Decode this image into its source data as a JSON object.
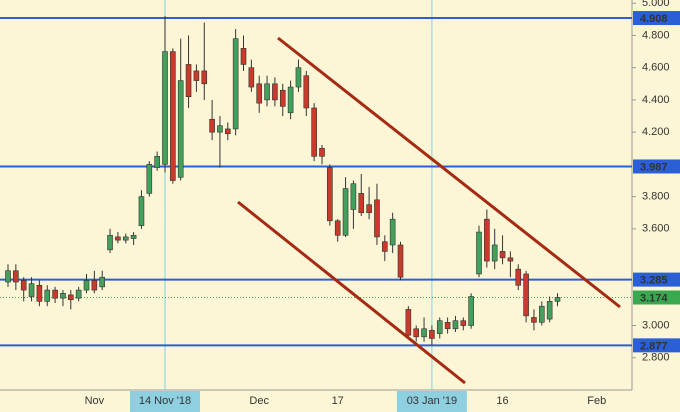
{
  "chart_data": {
    "type": "candlestick",
    "categories": [
      null,
      null,
      null,
      null,
      null,
      null,
      null,
      null,
      null,
      null,
      null,
      "Nov",
      null,
      null,
      null,
      null,
      null,
      null,
      null,
      null,
      "14 Nov '18",
      null,
      null,
      null,
      null,
      null,
      null,
      null,
      null,
      null,
      null,
      null,
      "Dec",
      null,
      null,
      null,
      null,
      null,
      null,
      null,
      null,
      null,
      "17",
      null,
      null,
      null,
      null,
      null,
      null,
      null,
      null,
      null,
      null,
      null,
      "03 Jan '19",
      null,
      null,
      null,
      null,
      null,
      null,
      null,
      null,
      "16",
      null,
      null,
      null,
      null,
      null,
      null,
      null,
      null,
      null,
      null,
      null,
      "Feb"
    ],
    "open": [
      3.27,
      3.34,
      3.28,
      3.18,
      3.25,
      3.15,
      3.22,
      3.17,
      3.19,
      3.17,
      3.22,
      3.28,
      3.24,
      3.47,
      3.55,
      3.53,
      3.54,
      3.62,
      3.82,
      3.98,
      4.0,
      4.7,
      3.92,
      4.62,
      4.58,
      4.58,
      4.28,
      4.2,
      4.22,
      4.22,
      4.72,
      4.6,
      4.5,
      4.4,
      4.5,
      4.46,
      4.32,
      4.48,
      4.55,
      4.35,
      4.1,
      3.98,
      3.65,
      3.56,
      3.72,
      3.82,
      3.75,
      3.78,
      3.52,
      3.5,
      3.5,
      3.1,
      2.98,
      2.93,
      2.97,
      2.95,
      3.02,
      2.98,
      3.03,
      3.0,
      3.32,
      3.66,
      3.4,
      3.46,
      3.42,
      3.35,
      3.32,
      3.05,
      3.02,
      3.04,
      3.15,
      null,
      null,
      null,
      null,
      null
    ],
    "high": [
      3.38,
      3.38,
      3.3,
      3.3,
      3.28,
      3.25,
      3.24,
      3.22,
      3.22,
      3.24,
      3.32,
      3.34,
      3.34,
      3.6,
      3.58,
      3.57,
      3.58,
      3.84,
      4.02,
      4.08,
      4.92,
      4.72,
      4.78,
      4.8,
      4.62,
      4.88,
      4.4,
      4.3,
      4.26,
      4.84,
      4.8,
      4.65,
      4.55,
      4.55,
      4.54,
      4.5,
      4.52,
      4.65,
      4.58,
      4.38,
      4.12,
      4.0,
      3.66,
      3.92,
      3.9,
      3.94,
      3.86,
      3.88,
      3.56,
      3.7,
      3.52,
      3.12,
      3.0,
      3.05,
      3.0,
      3.05,
      3.05,
      3.06,
      3.05,
      3.2,
      3.62,
      3.72,
      3.6,
      3.56,
      3.46,
      3.38,
      3.34,
      3.1,
      3.15,
      3.18,
      3.2,
      null,
      null,
      null,
      null,
      null
    ],
    "low": [
      3.24,
      3.22,
      3.15,
      3.15,
      3.12,
      3.12,
      3.14,
      3.12,
      3.1,
      3.15,
      3.2,
      3.2,
      3.22,
      3.45,
      3.51,
      3.51,
      3.5,
      3.6,
      3.8,
      3.96,
      3.95,
      3.88,
      3.9,
      4.35,
      4.45,
      4.4,
      4.15,
      3.98,
      4.15,
      4.18,
      4.58,
      4.45,
      4.32,
      4.36,
      4.36,
      4.3,
      4.28,
      4.45,
      4.3,
      4.02,
      4.0,
      3.62,
      3.52,
      3.55,
      3.6,
      3.68,
      3.66,
      3.5,
      3.4,
      3.45,
      3.28,
      2.92,
      2.9,
      2.9,
      2.88,
      2.92,
      2.95,
      2.96,
      2.97,
      2.98,
      3.3,
      3.36,
      3.35,
      3.38,
      3.3,
      3.22,
      3.02,
      2.97,
      3.0,
      3.02,
      3.12,
      null,
      null,
      null,
      null,
      null
    ],
    "close": [
      3.34,
      3.27,
      3.22,
      3.26,
      3.15,
      3.22,
      3.17,
      3.2,
      3.16,
      3.22,
      3.28,
      3.22,
      3.3,
      3.56,
      3.53,
      3.55,
      3.56,
      3.8,
      4.0,
      4.05,
      4.7,
      3.9,
      4.52,
      4.42,
      4.52,
      4.5,
      4.2,
      4.24,
      4.19,
      4.78,
      4.62,
      4.48,
      4.38,
      4.5,
      4.4,
      4.36,
      4.48,
      4.6,
      4.35,
      4.05,
      4.05,
      3.65,
      3.56,
      3.85,
      3.88,
      3.7,
      3.7,
      3.55,
      3.46,
      3.66,
      3.3,
      2.94,
      2.93,
      2.98,
      2.92,
      3.03,
      2.98,
      3.03,
      3.0,
      3.18,
      3.58,
      3.4,
      3.5,
      3.42,
      3.4,
      3.25,
      3.06,
      3.02,
      3.12,
      3.15,
      3.174,
      null,
      null,
      null,
      null,
      null
    ],
    "up_color": "#43a05c",
    "down_color": "#c83a2c",
    "ylim": [
      2.6,
      5.02
    ],
    "yticks": [
      {
        "value": 2.8,
        "label": "2.800"
      },
      {
        "value": 3.0,
        "label": "3.000"
      },
      {
        "value": 3.6,
        "label": "3.600"
      },
      {
        "value": 3.8,
        "label": "3.800"
      },
      {
        "value": 4.2,
        "label": "4.200"
      },
      {
        "value": 4.4,
        "label": "4.400"
      },
      {
        "value": 4.6,
        "label": "4.600"
      },
      {
        "value": 4.8,
        "label": "4.800"
      },
      {
        "value": 5.0,
        "label": "5.000"
      }
    ],
    "levels": [
      4.908,
      3.987,
      3.285,
      2.877
    ],
    "level_color": "#2a5fd6",
    "last_price": 3.174,
    "last_price_color": "#3aa84f",
    "highlight": [
      20,
      54
    ]
  }
}
